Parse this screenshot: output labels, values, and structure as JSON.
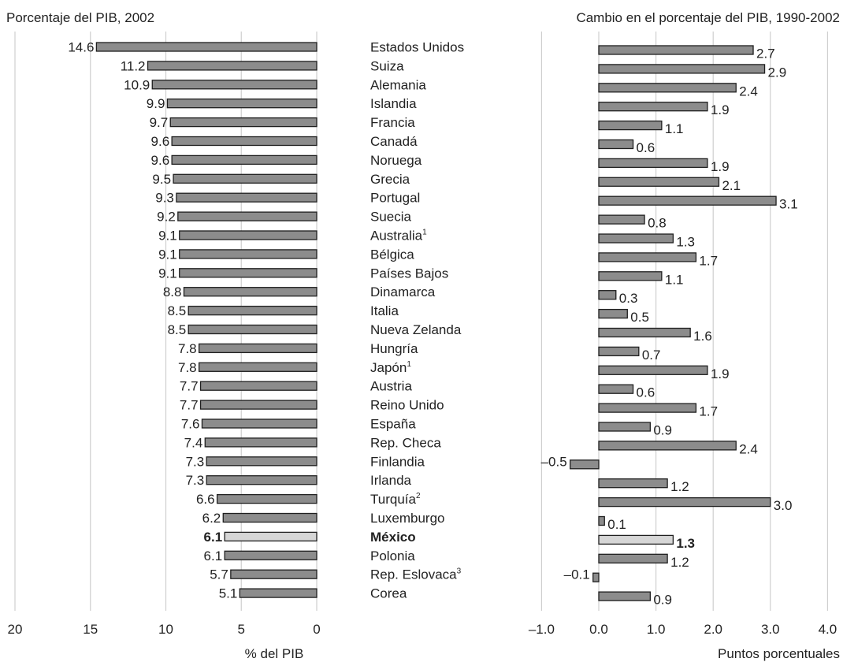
{
  "chart_data": [
    {
      "type": "bar",
      "orientation": "horizontal",
      "direction": "right-to-left",
      "title": "Porcentaje del PIB, 2002",
      "xlabel": "% del PIB",
      "xlim": [
        0,
        20
      ],
      "xticks": [
        20,
        15,
        10,
        5,
        0
      ],
      "grid": true,
      "categories": [
        "Estados Unidos",
        "Suiza",
        "Alemania",
        "Islandia",
        "Francia",
        "Canadá",
        "Noruega",
        "Grecia",
        "Portugal",
        "Suecia",
        "Australia",
        "Bélgica",
        "Países Bajos",
        "Dinamarca",
        "Italia",
        "Nueva Zelanda",
        "Hungría",
        "Japón",
        "Austria",
        "Reino Unido",
        "España",
        "Rep. Checa",
        "Finlandia",
        "Irlanda",
        "Turquía",
        "Luxemburgo",
        "México",
        "Polonia",
        "Rep. Eslovaca",
        "Corea"
      ],
      "footnote_marks": [
        "",
        "",
        "",
        "",
        "",
        "",
        "",
        "",
        "",
        "",
        "1",
        "",
        "",
        "",
        "",
        "",
        "",
        "1",
        "",
        "",
        "",
        "",
        "",
        "",
        "2",
        "",
        "",
        "",
        "3",
        ""
      ],
      "values": [
        14.6,
        11.2,
        10.9,
        9.9,
        9.7,
        9.6,
        9.6,
        9.5,
        9.3,
        9.2,
        9.1,
        9.1,
        9.1,
        8.8,
        8.5,
        8.5,
        7.8,
        7.8,
        7.7,
        7.7,
        7.6,
        7.4,
        7.3,
        7.3,
        6.6,
        6.2,
        6.1,
        6.1,
        5.7,
        5.1
      ],
      "labels": [
        "14.6",
        "11.2",
        "10.9",
        "9.9",
        "9.7",
        "9.6",
        "9.6",
        "9.5",
        "9.3",
        "9.2",
        "9.1",
        "9.1",
        "9.1",
        "8.8",
        "8.5",
        "8.5",
        "7.8",
        "7.8",
        "7.7",
        "7.7",
        "7.6",
        "7.4",
        "7.3",
        "7.3",
        "6.6",
        "6.2",
        "6.1",
        "6.1",
        "5.7",
        "5.1"
      ],
      "highlight": "México",
      "colors": {
        "bar": "#8c8c8c",
        "highlight": "#d6d6d6",
        "outline": "#1f1f1f",
        "grid": "#cfcfcf"
      }
    },
    {
      "type": "bar",
      "orientation": "horizontal",
      "title": "Cambio en el porcentaje del PIB, 1990-2002",
      "xlabel": "Puntos porcentuales",
      "xlim": [
        -1.0,
        4.0
      ],
      "xticks": [
        -1.0,
        0.0,
        1.0,
        2.0,
        3.0,
        4.0
      ],
      "xtick_labels": [
        "–1.0",
        "0.0",
        "1.0",
        "2.0",
        "3.0",
        "4.0"
      ],
      "grid": true,
      "values": [
        2.7,
        2.9,
        2.4,
        1.9,
        1.1,
        0.6,
        1.9,
        2.1,
        3.1,
        0.8,
        1.3,
        1.7,
        1.1,
        0.3,
        0.5,
        1.6,
        0.7,
        1.9,
        0.6,
        1.7,
        0.9,
        2.4,
        -0.5,
        1.2,
        3.0,
        0.1,
        1.3,
        1.2,
        -0.1,
        0.9
      ],
      "labels": [
        "2.7",
        "2.9",
        "2.4",
        "1.9",
        "1.1",
        "0.6",
        "1.9",
        "2.1",
        "3.1",
        "0.8",
        "1.3",
        "1.7",
        "1.1",
        "0.3",
        "0.5",
        "1.6",
        "0.7",
        "1.9",
        "0.6",
        "1.7",
        "0.9",
        "2.4",
        "–0.5",
        "1.2",
        "3.0",
        "0.1",
        "1.3",
        "1.2",
        "–0.1",
        "0.9"
      ],
      "highlight": "México",
      "colors": {
        "bar": "#8c8c8c",
        "highlight": "#d6d6d6",
        "outline": "#1f1f1f",
        "grid": "#cfcfcf"
      }
    }
  ]
}
